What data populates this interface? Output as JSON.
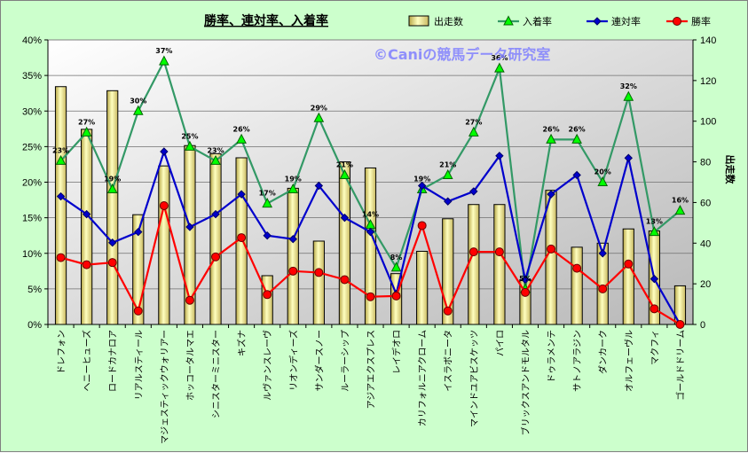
{
  "chart_data": {
    "type": "bar+line",
    "title": "勝率、連対率、入着率",
    "watermark": "©Caniの競馬データ研究室",
    "y2label": "出走数",
    "ylim": [
      0,
      40
    ],
    "y2lim": [
      0,
      140
    ],
    "y_ticks": [
      "0%",
      "5%",
      "10%",
      "15%",
      "20%",
      "25%",
      "30%",
      "35%",
      "40%"
    ],
    "y2_ticks": [
      "0",
      "20",
      "40",
      "60",
      "80",
      "100",
      "120",
      "140"
    ],
    "categories": [
      "ドレフォン",
      "ヘニーヒューズ",
      "ロードカナロア",
      "リアルスティール",
      "マジェスティックウォリアー",
      "ホッコータルマエ",
      "シニスターミニスター",
      "キズナ",
      "ルヴァンスレーヴ",
      "リオンディーズ",
      "サンダースノー",
      "ルーラーシップ",
      "アジアエクスプレス",
      "レイデオロ",
      "カリフォルニアクローム",
      "イスラボニータ",
      "マインドユアビスケッツ",
      "パイロ",
      "ブリックスアンドモルタル",
      "ドゥラメンテ",
      "サトノアラジン",
      "ダンカーク",
      "オルフェーヴル",
      "マクフィ",
      "ゴールドドリーム"
    ],
    "legend": [
      "出走数",
      "入着率",
      "連対率",
      "勝率"
    ],
    "bar_series": {
      "name": "出走数",
      "axis": "right",
      "values": [
        117,
        96,
        115,
        54,
        78,
        88,
        84,
        82,
        24,
        67,
        41,
        80,
        77,
        25,
        36,
        52,
        59,
        59,
        22,
        66,
        38,
        40,
        47,
        46,
        19
      ]
    },
    "series": [
      {
        "name": "入着率",
        "color": "#339966",
        "marker": "triangle",
        "values": [
          23,
          27,
          19,
          30,
          37,
          25,
          23,
          26,
          17,
          19,
          29,
          21,
          14,
          8,
          19,
          21,
          27,
          36,
          5,
          26,
          26,
          20,
          32,
          13,
          16
        ]
      },
      {
        "name": "連対率",
        "color": "#0000cc",
        "marker": "diamond",
        "values": [
          18,
          15.5,
          11.5,
          13,
          24.3,
          13.7,
          15.5,
          18.3,
          12.5,
          12,
          19.5,
          15,
          13,
          4.3,
          19.5,
          17.3,
          18.7,
          23.7,
          6.3,
          18.3,
          21,
          10,
          23.4,
          6.4,
          0
        ]
      },
      {
        "name": "勝率",
        "color": "#ff0000",
        "marker": "circle",
        "values": [
          9.4,
          8.4,
          8.7,
          1.9,
          16.7,
          3.4,
          9.5,
          12.2,
          4.2,
          7.5,
          7.3,
          6.3,
          3.9,
          4,
          13.9,
          1.9,
          10.2,
          10.2,
          4.5,
          10.6,
          7.9,
          5,
          8.5,
          2.2,
          0
        ]
      }
    ],
    "data_labels": [
      "23%",
      "27%",
      "19%",
      "30%",
      "37%",
      "25%",
      "23%",
      "26%",
      "17%",
      "19%",
      "29%",
      "21%",
      "14%",
      "8%",
      "19%",
      "21%",
      "27%",
      "36%",
      "5%",
      "26%",
      "26%",
      "20%",
      "32%",
      "13%",
      "16%"
    ]
  }
}
